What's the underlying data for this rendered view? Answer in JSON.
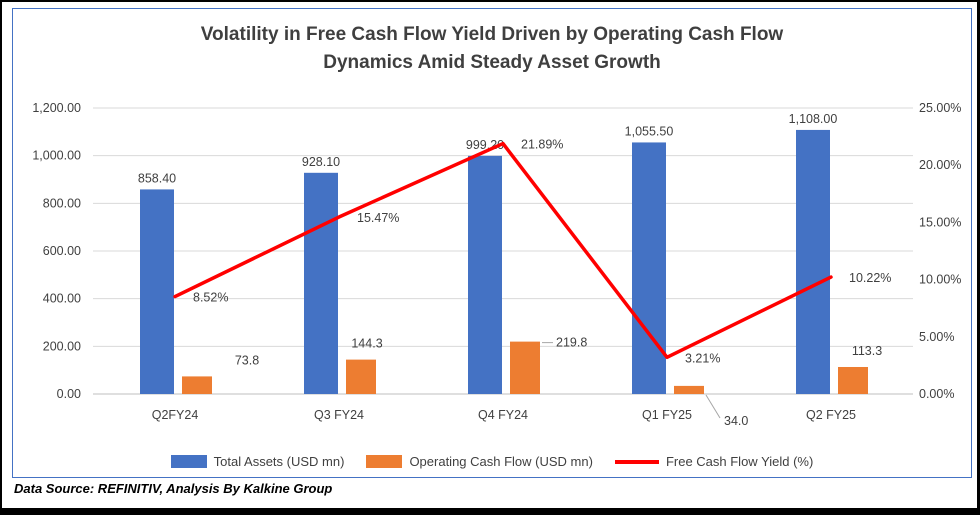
{
  "title": {
    "line1": "Volatility in Free Cash Flow Yield Driven by Operating Cash Flow",
    "line2": "Dynamics Amid Steady Asset Growth"
  },
  "footer": "Data Source: REFINITIV, Analysis By Kalkine Group",
  "colors": {
    "total_assets_bar": "#4472C4",
    "operating_cash_flow_bar": "#ED7D31",
    "yield_line": "#FF0000",
    "chart_border": "#4472C4",
    "frame_border": "#000000",
    "gridline": "#D9D9D9",
    "axis_line": "#BFBFBF",
    "leader_line": "#A6A6A6",
    "text": "#404040"
  },
  "chart_data": {
    "type": "combo_bar_line",
    "categories": [
      "Q2FY24",
      "Q3 FY24",
      "Q4 FY24",
      "Q1 FY25",
      "Q2 FY25"
    ],
    "series": [
      {
        "name": "Total Assets (USD mn)",
        "type": "bar",
        "axis": "left",
        "color": "#4472C4",
        "values": [
          858.4,
          928.1,
          999.2,
          1055.5,
          1108.0
        ],
        "labels": [
          "858.40",
          "928.10",
          "999.20",
          "1,055.50",
          "1,108.00"
        ]
      },
      {
        "name": "Operating Cash Flow (USD mn)",
        "type": "bar",
        "axis": "left",
        "color": "#ED7D31",
        "values": [
          73.8,
          144.3,
          219.8,
          34.0,
          113.3
        ],
        "labels": [
          "73.8",
          "144.3",
          "219.8",
          "34.0",
          "113.3"
        ]
      },
      {
        "name": "Free Cash Flow Yield (%)",
        "type": "line",
        "axis": "right",
        "color": "#FF0000",
        "values": [
          8.52,
          15.47,
          21.89,
          3.21,
          10.22
        ],
        "labels": [
          "8.52%",
          "15.47%",
          "21.89%",
          "3.21%",
          "10.22%"
        ]
      }
    ],
    "left_axis": {
      "min": 0,
      "max": 1200,
      "step": 200,
      "ticks": [
        "0.00",
        "200.00",
        "400.00",
        "600.00",
        "800.00",
        "1,000.00",
        "1,200.00"
      ]
    },
    "right_axis": {
      "min": 0,
      "max": 25,
      "step": 5,
      "ticks": [
        "0.00%",
        "5.00%",
        "10.00%",
        "15.00%",
        "20.00%",
        "25.00%"
      ]
    },
    "grid": true,
    "legend_position": "bottom"
  }
}
